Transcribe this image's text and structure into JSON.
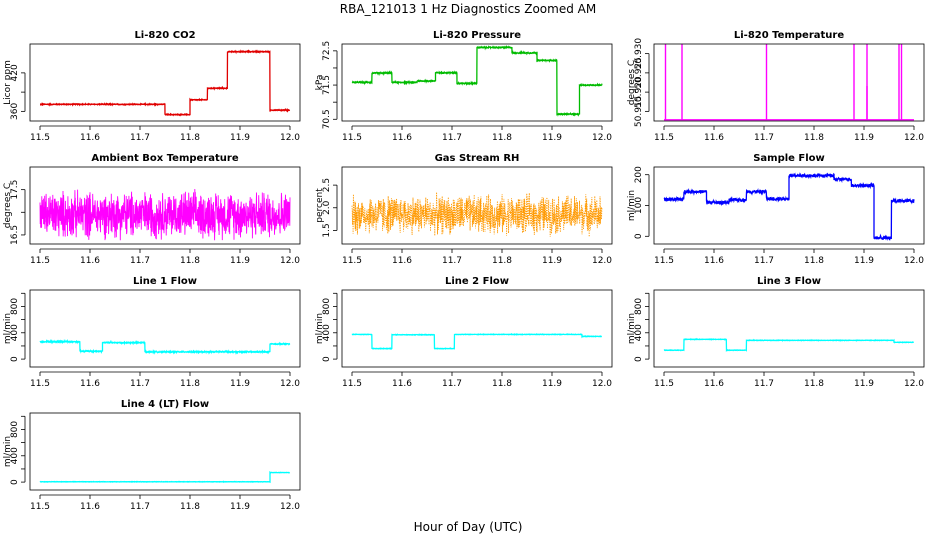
{
  "figure": {
    "title": "RBA_121013  1 Hz Diagnostics Zoomed AM",
    "xlabel": "Hour of Day (UTC)"
  },
  "chart_data": [
    {
      "type": "line",
      "title": "Li-820 CO2",
      "ylabel": "Licor ppm",
      "color": "#e00000",
      "xlim": [
        11.48,
        12.02
      ],
      "ylim": [
        345,
        465
      ],
      "xticks": [
        11.5,
        11.6,
        11.7,
        11.8,
        11.9,
        12.0
      ],
      "yticks": [
        360,
        390,
        420
      ],
      "yticklabels": [
        "360",
        "",
        "420"
      ],
      "noise": 0.8,
      "segments": [
        [
          11.5,
          11.75,
          371
        ],
        [
          11.75,
          11.8,
          355
        ],
        [
          11.8,
          11.835,
          378
        ],
        [
          11.835,
          11.875,
          396
        ],
        [
          11.875,
          11.96,
          453
        ],
        [
          11.96,
          12.0,
          362
        ]
      ]
    },
    {
      "type": "line",
      "title": "Li-820 Pressure",
      "ylabel": "kPa",
      "color": "#00bb00",
      "xlim": [
        11.48,
        12.02
      ],
      "ylim": [
        70.45,
        72.7
      ],
      "xticks": [
        11.5,
        11.6,
        11.7,
        11.8,
        11.9,
        12.0
      ],
      "yticks": [
        70.5,
        71.0,
        71.5,
        72.0,
        72.5
      ],
      "yticklabels": [
        "70.5",
        "",
        "71.5",
        "",
        "72.5"
      ],
      "noise": 0.02,
      "segments": [
        [
          11.5,
          11.54,
          71.58
        ],
        [
          11.54,
          11.58,
          71.85
        ],
        [
          11.58,
          11.63,
          71.58
        ],
        [
          11.63,
          11.667,
          71.62
        ],
        [
          11.667,
          11.71,
          71.86
        ],
        [
          11.71,
          11.75,
          71.55
        ],
        [
          11.75,
          11.82,
          72.6
        ],
        [
          11.82,
          11.87,
          72.44
        ],
        [
          11.87,
          11.91,
          72.22
        ],
        [
          11.91,
          11.955,
          70.65
        ],
        [
          11.955,
          12.0,
          71.5
        ]
      ]
    },
    {
      "type": "line",
      "title": "Li-820 Temperature",
      "ylabel": "degrees C",
      "color": "#ff00ff",
      "xlim": [
        11.48,
        12.02
      ],
      "ylim": [
        50.9125,
        50.9325
      ],
      "xticks": [
        11.5,
        11.6,
        11.7,
        11.8,
        11.9,
        12.0
      ],
      "yticks": [
        50.915,
        50.92,
        50.925,
        50.93
      ],
      "yticklabels": [
        "50.915",
        "50.920",
        "50.925",
        "50.930"
      ],
      "noise": 0.0,
      "segments": [
        [
          11.5,
          12.0,
          50.9128
        ]
      ],
      "spikes": [
        [
          11.503,
          50.9325
        ],
        [
          11.536,
          50.9325
        ],
        [
          11.705,
          50.9325
        ],
        [
          11.88,
          50.9325
        ],
        [
          11.906,
          50.9325
        ],
        [
          11.906,
          50.9216
        ],
        [
          11.97,
          50.9325
        ],
        [
          11.975,
          50.9325
        ]
      ]
    },
    {
      "type": "line",
      "title": "Ambient Box Temperature",
      "ylabel": "degrees C",
      "color": "#ff00ff",
      "xlim": [
        11.48,
        12.02
      ],
      "ylim": [
        16.3,
        18.0
      ],
      "xticks": [
        11.5,
        11.6,
        11.7,
        11.8,
        11.9,
        12.0
      ],
      "yticks": [
        16.5,
        17.0,
        17.5
      ],
      "yticklabels": [
        "16.5",
        "",
        "17.5"
      ],
      "noise": 0.6,
      "segments": [
        [
          11.5,
          12.0,
          16.95
        ]
      ]
    },
    {
      "type": "line",
      "title": "Gas Stream RH",
      "ylabel": "percent",
      "color": "#ff9900",
      "dotted": true,
      "xlim": [
        11.48,
        12.02
      ],
      "ylim": [
        1.2,
        2.9
      ],
      "xticks": [
        11.5,
        11.6,
        11.7,
        11.8,
        11.9,
        12.0
      ],
      "yticks": [
        1.5,
        2.0,
        2.5
      ],
      "yticklabels": [
        "1.5",
        "2.0",
        "2.5"
      ],
      "noise": 0.5,
      "segments": [
        [
          11.5,
          12.0,
          1.85
        ]
      ]
    },
    {
      "type": "line",
      "title": "Sample Flow",
      "ylabel": "ml/min",
      "color": "#0000ff",
      "xlim": [
        11.48,
        12.02
      ],
      "ylim": [
        -25,
        225
      ],
      "xticks": [
        11.5,
        11.6,
        11.7,
        11.8,
        11.9,
        12.0
      ],
      "yticks": [
        0,
        100,
        200
      ],
      "yticklabels": [
        "0",
        "100",
        "200"
      ],
      "noise": 7,
      "segments": [
        [
          11.5,
          11.54,
          120
        ],
        [
          11.54,
          11.585,
          145
        ],
        [
          11.585,
          11.63,
          110
        ],
        [
          11.63,
          11.665,
          118
        ],
        [
          11.665,
          11.705,
          145
        ],
        [
          11.705,
          11.75,
          122
        ],
        [
          11.75,
          11.84,
          197
        ],
        [
          11.84,
          11.875,
          185
        ],
        [
          11.875,
          11.92,
          165
        ],
        [
          11.92,
          11.955,
          -5
        ],
        [
          11.955,
          12.0,
          115
        ]
      ]
    },
    {
      "type": "line",
      "title": "Line 1 Flow",
      "ylabel": "ml/min",
      "color": "#00ffff",
      "xlim": [
        11.48,
        12.02
      ],
      "ylim": [
        -120,
        1050
      ],
      "xticks": [
        11.5,
        11.6,
        11.7,
        11.8,
        11.9,
        12.0
      ],
      "yticks": [
        0,
        200,
        400,
        600,
        800,
        1000
      ],
      "yticklabels": [
        "0",
        "",
        "400",
        "",
        "800",
        ""
      ],
      "noise": 10,
      "segments": [
        [
          11.5,
          11.58,
          265
        ],
        [
          11.58,
          11.625,
          120
        ],
        [
          11.625,
          11.71,
          250
        ],
        [
          11.71,
          11.96,
          110
        ],
        [
          11.96,
          12.0,
          230
        ]
      ]
    },
    {
      "type": "line",
      "title": "Line 2 Flow",
      "ylabel": "ml/min",
      "color": "#00ffff",
      "xlim": [
        11.48,
        12.02
      ],
      "ylim": [
        -120,
        1050
      ],
      "xticks": [
        11.5,
        11.6,
        11.7,
        11.8,
        11.9,
        12.0
      ],
      "yticks": [
        0,
        200,
        400,
        600,
        800,
        1000
      ],
      "yticklabels": [
        "0",
        "",
        "400",
        "",
        "800",
        ""
      ],
      "noise": 4,
      "segments": [
        [
          11.5,
          11.54,
          375
        ],
        [
          11.54,
          11.58,
          160
        ],
        [
          11.58,
          11.665,
          370
        ],
        [
          11.665,
          11.705,
          160
        ],
        [
          11.705,
          11.96,
          375
        ],
        [
          11.96,
          12.0,
          345
        ]
      ]
    },
    {
      "type": "line",
      "title": "Line 3 Flow",
      "ylabel": "ml/min",
      "color": "#00ffff",
      "xlim": [
        11.48,
        12.02
      ],
      "ylim": [
        -120,
        1050
      ],
      "xticks": [
        11.5,
        11.6,
        11.7,
        11.8,
        11.9,
        12.0
      ],
      "yticks": [
        0,
        200,
        400,
        600,
        800,
        1000
      ],
      "yticklabels": [
        "0",
        "",
        "400",
        "",
        "800",
        ""
      ],
      "noise": 4,
      "segments": [
        [
          11.5,
          11.54,
          135
        ],
        [
          11.54,
          11.625,
          300
        ],
        [
          11.625,
          11.665,
          135
        ],
        [
          11.665,
          11.96,
          285
        ],
        [
          11.96,
          12.0,
          255
        ]
      ]
    },
    {
      "type": "line",
      "title": "Line 4 (LT) Flow",
      "ylabel": "ml/min",
      "color": "#00ffff",
      "xlim": [
        11.48,
        12.02
      ],
      "ylim": [
        -120,
        1050
      ],
      "xticks": [
        11.5,
        11.6,
        11.7,
        11.8,
        11.9,
        12.0
      ],
      "yticks": [
        0,
        200,
        400,
        600,
        800,
        1000
      ],
      "yticklabels": [
        "0",
        "",
        "400",
        "",
        "800",
        ""
      ],
      "noise": 3,
      "segments": [
        [
          11.5,
          11.96,
          5
        ],
        [
          11.96,
          12.0,
          145
        ]
      ]
    }
  ]
}
